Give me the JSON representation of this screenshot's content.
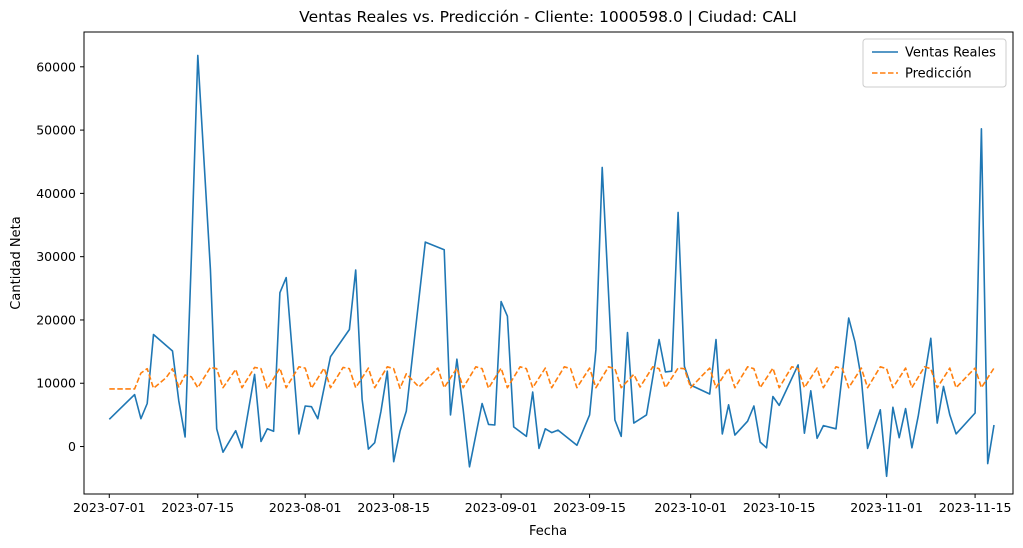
{
  "chart_data": {
    "type": "line",
    "title": "Ventas Reales vs. Predicción - Cliente: 1000598.0 | Ciudad: CALI",
    "xlabel": "Fecha",
    "ylabel": "Cantidad Neta",
    "xlim": [
      "2023-06-27",
      "2023-11-21"
    ],
    "ylim": [
      -7500,
      65500
    ],
    "x_ticks": [
      "2023-07-01",
      "2023-07-15",
      "2023-08-01",
      "2023-08-15",
      "2023-09-01",
      "2023-09-15",
      "2023-10-01",
      "2023-10-15",
      "2023-11-01",
      "2023-11-15"
    ],
    "y_ticks": [
      0,
      10000,
      20000,
      30000,
      40000,
      50000,
      60000
    ],
    "y_tick_labels": [
      "0",
      "10000",
      "20000",
      "30000",
      "40000",
      "50000",
      "60000"
    ],
    "legend_position": "top-right",
    "grid": false,
    "series": [
      {
        "name": "Ventas Reales",
        "color": "#1f77b4",
        "style": "solid",
        "points": [
          [
            "2023-07-01",
            4300
          ],
          [
            "2023-07-05",
            8200
          ],
          [
            "2023-07-06",
            4400
          ],
          [
            "2023-07-07",
            6800
          ],
          [
            "2023-07-08",
            17700
          ],
          [
            "2023-07-11",
            15100
          ],
          [
            "2023-07-12",
            7200
          ],
          [
            "2023-07-13",
            1500
          ],
          [
            "2023-07-14",
            30000
          ],
          [
            "2023-07-15",
            61800
          ],
          [
            "2023-07-17",
            28000
          ],
          [
            "2023-07-18",
            2800
          ],
          [
            "2023-07-19",
            -900
          ],
          [
            "2023-07-21",
            2500
          ],
          [
            "2023-07-22",
            -200
          ],
          [
            "2023-07-24",
            11400
          ],
          [
            "2023-07-25",
            800
          ],
          [
            "2023-07-26",
            2800
          ],
          [
            "2023-07-27",
            2400
          ],
          [
            "2023-07-28",
            24300
          ],
          [
            "2023-07-29",
            26700
          ],
          [
            "2023-07-31",
            2000
          ],
          [
            "2023-08-01",
            6400
          ],
          [
            "2023-08-02",
            6300
          ],
          [
            "2023-08-03",
            4400
          ],
          [
            "2023-08-05",
            14200
          ],
          [
            "2023-08-08",
            18500
          ],
          [
            "2023-08-09",
            27900
          ],
          [
            "2023-08-10",
            7500
          ],
          [
            "2023-08-11",
            -400
          ],
          [
            "2023-08-12",
            600
          ],
          [
            "2023-08-13",
            5600
          ],
          [
            "2023-08-14",
            11900
          ],
          [
            "2023-08-15",
            -2400
          ],
          [
            "2023-08-16",
            2400
          ],
          [
            "2023-08-17",
            5600
          ],
          [
            "2023-08-20",
            32300
          ],
          [
            "2023-08-23",
            31100
          ],
          [
            "2023-08-24",
            5000
          ],
          [
            "2023-08-25",
            13800
          ],
          [
            "2023-08-26",
            5800
          ],
          [
            "2023-08-27",
            -3200
          ],
          [
            "2023-08-29",
            6800
          ],
          [
            "2023-08-30",
            3500
          ],
          [
            "2023-08-31",
            3400
          ],
          [
            "2023-09-01",
            22900
          ],
          [
            "2023-09-02",
            20600
          ],
          [
            "2023-09-03",
            3100
          ],
          [
            "2023-09-05",
            1600
          ],
          [
            "2023-09-06",
            8600
          ],
          [
            "2023-09-07",
            -300
          ],
          [
            "2023-09-08",
            2800
          ],
          [
            "2023-09-09",
            2200
          ],
          [
            "2023-09-10",
            2600
          ],
          [
            "2023-09-13",
            200
          ],
          [
            "2023-09-15",
            5000
          ],
          [
            "2023-09-16",
            15300
          ],
          [
            "2023-09-17",
            44100
          ],
          [
            "2023-09-19",
            4200
          ],
          [
            "2023-09-20",
            1600
          ],
          [
            "2023-09-21",
            18000
          ],
          [
            "2023-09-22",
            3700
          ],
          [
            "2023-09-24",
            5000
          ],
          [
            "2023-09-26",
            16900
          ],
          [
            "2023-09-27",
            11800
          ],
          [
            "2023-09-28",
            11900
          ],
          [
            "2023-09-29",
            37000
          ],
          [
            "2023-09-30",
            12700
          ],
          [
            "2023-10-01",
            9700
          ],
          [
            "2023-10-04",
            8300
          ],
          [
            "2023-10-05",
            16900
          ],
          [
            "2023-10-06",
            2000
          ],
          [
            "2023-10-07",
            6600
          ],
          [
            "2023-10-08",
            1800
          ],
          [
            "2023-10-10",
            4000
          ],
          [
            "2023-10-11",
            6400
          ],
          [
            "2023-10-12",
            700
          ],
          [
            "2023-10-13",
            -200
          ],
          [
            "2023-10-14",
            7900
          ],
          [
            "2023-10-15",
            6500
          ],
          [
            "2023-10-18",
            12900
          ],
          [
            "2023-10-19",
            2100
          ],
          [
            "2023-10-20",
            8800
          ],
          [
            "2023-10-21",
            1300
          ],
          [
            "2023-10-22",
            3300
          ],
          [
            "2023-10-24",
            2800
          ],
          [
            "2023-10-26",
            20300
          ],
          [
            "2023-10-27",
            16500
          ],
          [
            "2023-10-28",
            10800
          ],
          [
            "2023-10-29",
            -300
          ],
          [
            "2023-10-31",
            5800
          ],
          [
            "2023-11-01",
            -4700
          ],
          [
            "2023-11-02",
            6200
          ],
          [
            "2023-11-03",
            1400
          ],
          [
            "2023-11-04",
            6000
          ],
          [
            "2023-11-05",
            -200
          ],
          [
            "2023-11-06",
            4800
          ],
          [
            "2023-11-08",
            17100
          ],
          [
            "2023-11-09",
            3700
          ],
          [
            "2023-11-10",
            9500
          ],
          [
            "2023-11-11",
            5000
          ],
          [
            "2023-11-12",
            2000
          ],
          [
            "2023-11-15",
            5300
          ],
          [
            "2023-11-16",
            50200
          ],
          [
            "2023-11-17",
            -2700
          ],
          [
            "2023-11-18",
            3400
          ]
        ]
      },
      {
        "name": "Predicción",
        "color": "#ff7f0e",
        "style": "dashed",
        "points": [
          [
            "2023-07-01",
            9100
          ],
          [
            "2023-07-05",
            9100
          ],
          [
            "2023-07-06",
            11600
          ],
          [
            "2023-07-07",
            12300
          ],
          [
            "2023-07-08",
            9200
          ],
          [
            "2023-07-10",
            10900
          ],
          [
            "2023-07-11",
            12300
          ],
          [
            "2023-07-12",
            9400
          ],
          [
            "2023-07-13",
            11300
          ],
          [
            "2023-07-14",
            11000
          ],
          [
            "2023-07-15",
            9300
          ],
          [
            "2023-07-17",
            12500
          ],
          [
            "2023-07-18",
            12300
          ],
          [
            "2023-07-19",
            9300
          ],
          [
            "2023-07-21",
            12200
          ],
          [
            "2023-07-22",
            9300
          ],
          [
            "2023-07-24",
            12500
          ],
          [
            "2023-07-25",
            12300
          ],
          [
            "2023-07-26",
            9100
          ],
          [
            "2023-07-28",
            12400
          ],
          [
            "2023-07-29",
            9300
          ],
          [
            "2023-07-31",
            12600
          ],
          [
            "2023-08-01",
            12400
          ],
          [
            "2023-08-02",
            9200
          ],
          [
            "2023-08-04",
            12400
          ],
          [
            "2023-08-05",
            9300
          ],
          [
            "2023-08-07",
            12500
          ],
          [
            "2023-08-08",
            12300
          ],
          [
            "2023-08-09",
            9300
          ],
          [
            "2023-08-11",
            12400
          ],
          [
            "2023-08-12",
            9300
          ],
          [
            "2023-08-14",
            12600
          ],
          [
            "2023-08-15",
            12300
          ],
          [
            "2023-08-16",
            9200
          ],
          [
            "2023-08-17",
            11500
          ],
          [
            "2023-08-19",
            9400
          ],
          [
            "2023-08-21",
            11400
          ],
          [
            "2023-08-22",
            12400
          ],
          [
            "2023-08-23",
            9300
          ],
          [
            "2023-08-25",
            12400
          ],
          [
            "2023-08-26",
            9300
          ],
          [
            "2023-08-28",
            12600
          ],
          [
            "2023-08-29",
            12300
          ],
          [
            "2023-08-30",
            9200
          ],
          [
            "2023-09-01",
            12400
          ],
          [
            "2023-09-02",
            9300
          ],
          [
            "2023-09-04",
            12600
          ],
          [
            "2023-09-05",
            12300
          ],
          [
            "2023-09-06",
            9300
          ],
          [
            "2023-09-08",
            12400
          ],
          [
            "2023-09-09",
            9300
          ],
          [
            "2023-09-11",
            12600
          ],
          [
            "2023-09-12",
            12300
          ],
          [
            "2023-09-13",
            9300
          ],
          [
            "2023-09-15",
            12400
          ],
          [
            "2023-09-16",
            9300
          ],
          [
            "2023-09-18",
            12600
          ],
          [
            "2023-09-19",
            12300
          ],
          [
            "2023-09-20",
            9300
          ],
          [
            "2023-09-22",
            11400
          ],
          [
            "2023-09-23",
            9400
          ],
          [
            "2023-09-25",
            12600
          ],
          [
            "2023-09-26",
            12300
          ],
          [
            "2023-09-27",
            9300
          ],
          [
            "2023-09-29",
            12400
          ],
          [
            "2023-09-30",
            12300
          ],
          [
            "2023-10-01",
            9300
          ],
          [
            "2023-10-03",
            11400
          ],
          [
            "2023-10-04",
            12400
          ],
          [
            "2023-10-05",
            9300
          ],
          [
            "2023-10-07",
            12400
          ],
          [
            "2023-10-08",
            9300
          ],
          [
            "2023-10-10",
            12600
          ],
          [
            "2023-10-11",
            12300
          ],
          [
            "2023-10-12",
            9300
          ],
          [
            "2023-10-14",
            12400
          ],
          [
            "2023-10-15",
            9300
          ],
          [
            "2023-10-17",
            12600
          ],
          [
            "2023-10-18",
            12300
          ],
          [
            "2023-10-19",
            9300
          ],
          [
            "2023-10-21",
            12400
          ],
          [
            "2023-10-22",
            9300
          ],
          [
            "2023-10-24",
            12600
          ],
          [
            "2023-10-25",
            12300
          ],
          [
            "2023-10-26",
            9300
          ],
          [
            "2023-10-28",
            12400
          ],
          [
            "2023-10-29",
            9300
          ],
          [
            "2023-10-31",
            12600
          ],
          [
            "2023-11-01",
            12300
          ],
          [
            "2023-11-02",
            9300
          ],
          [
            "2023-11-04",
            12400
          ],
          [
            "2023-11-05",
            9300
          ],
          [
            "2023-11-07",
            12600
          ],
          [
            "2023-11-08",
            12300
          ],
          [
            "2023-11-09",
            9300
          ],
          [
            "2023-11-11",
            12400
          ],
          [
            "2023-11-12",
            9300
          ],
          [
            "2023-11-14",
            11400
          ],
          [
            "2023-11-15",
            12400
          ],
          [
            "2023-11-16",
            9300
          ],
          [
            "2023-11-18",
            12400
          ]
        ]
      }
    ]
  }
}
